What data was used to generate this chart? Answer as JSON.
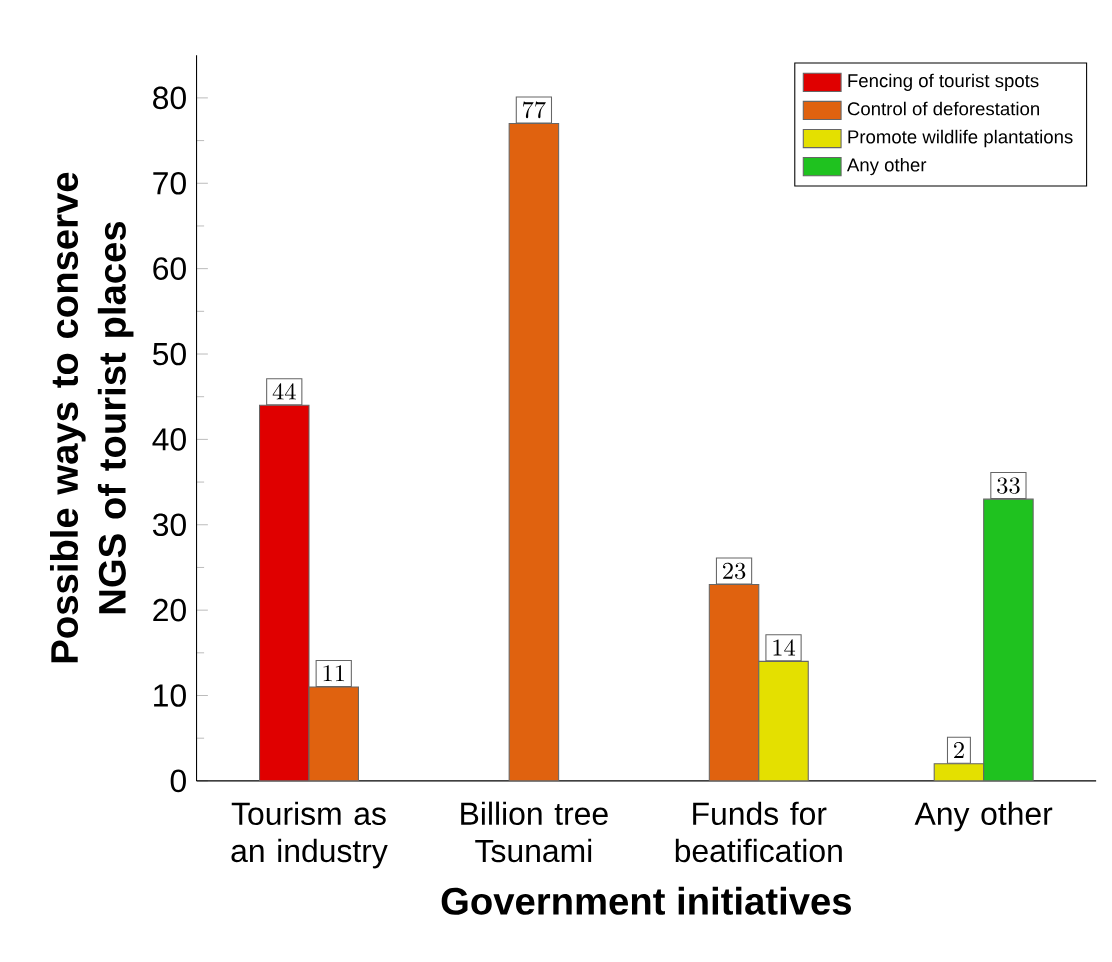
{
  "chart_data": {
    "type": "bar",
    "xlabel": "Government initiatives",
    "ylabel": "Possible ways to conserve NGS of tourist places",
    "categories": [
      "Tourism as an industry",
      "Billion tree Tsunami",
      "Funds for beatification",
      "Any other"
    ],
    "series": [
      {
        "name": "Fencing of tourist spots",
        "color": "#e00000",
        "values": [
          44,
          null,
          null,
          null
        ]
      },
      {
        "name": "Control of deforestation",
        "color": "#e0620f",
        "values": [
          11,
          77,
          23,
          null
        ]
      },
      {
        "name": "Promote wildlife plantations",
        "color": "#e4e000",
        "values": [
          null,
          null,
          14,
          2
        ]
      },
      {
        "name": "Any other",
        "color": "#1fc21f",
        "values": [
          null,
          null,
          null,
          33
        ]
      }
    ],
    "ylim": [
      0,
      85
    ],
    "yticks": [
      0,
      10,
      20,
      30,
      40,
      50,
      60,
      70,
      80
    ],
    "data_labels": true,
    "legend": "top right",
    "grid": false
  }
}
